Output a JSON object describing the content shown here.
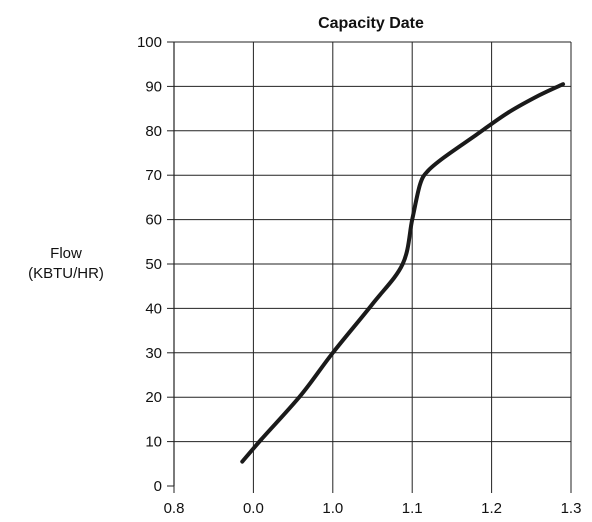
{
  "chart_data": {
    "type": "line",
    "title": "Capacity Date",
    "ylabel_line1": "Flow",
    "ylabel_line2": "(KBTU/HR)",
    "xlabel": "",
    "x_ticks": [
      "0.8",
      "0.0",
      "1.0",
      "1.1",
      "1.2",
      "1.3"
    ],
    "y_ticks": [
      "0",
      "10",
      "20",
      "30",
      "40",
      "50",
      "60",
      "70",
      "80",
      "90",
      "100"
    ],
    "ylim": [
      0,
      100
    ],
    "grid": true,
    "series": [
      {
        "x_tick_pos": [
          0.86,
          1.1,
          1.6,
          2.0,
          2.5,
          2.88,
          3.0,
          3.1,
          3.2,
          3.4,
          3.8,
          4.2,
          4.6,
          4.9
        ],
        "values": [
          5.5,
          10.5,
          20.5,
          30,
          41,
          50,
          60,
          68,
          71,
          74,
          79,
          84,
          88,
          90.5
        ]
      }
    ],
    "line_color": "#1a1a1a"
  }
}
